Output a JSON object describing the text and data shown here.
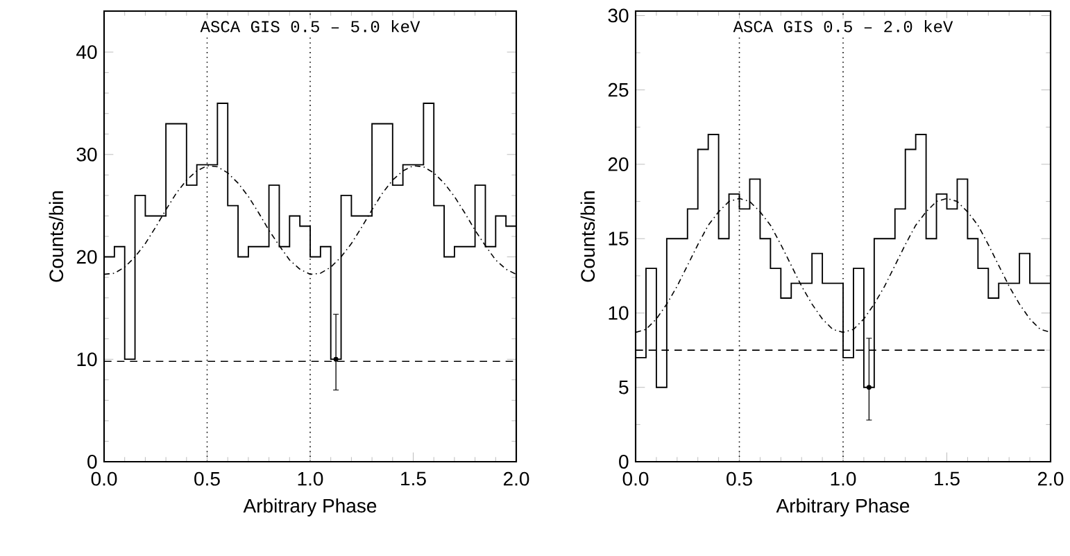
{
  "chart_data": [
    {
      "type": "step",
      "title": "ASCA GIS 0.5 – 5.0 keV",
      "xlabel": "Arbitrary Phase",
      "ylabel": "Counts/bin",
      "x": [
        0,
        0.05,
        0.1,
        0.15,
        0.2,
        0.25,
        0.3,
        0.35,
        0.4,
        0.45,
        0.5,
        0.55,
        0.6,
        0.65,
        0.7,
        0.75,
        0.8,
        0.85,
        0.9,
        0.95,
        1.0,
        1.05,
        1.1,
        1.15,
        1.2,
        1.25,
        1.3,
        1.35,
        1.4,
        1.45,
        1.5,
        1.55,
        1.6,
        1.65,
        1.7,
        1.75,
        1.8,
        1.85,
        1.9,
        1.95,
        2.0
      ],
      "values": [
        20,
        21,
        10,
        26,
        24,
        24,
        33,
        33,
        27,
        29,
        29,
        35,
        25,
        20,
        21,
        21,
        27,
        21,
        24,
        23,
        20,
        21,
        10,
        26,
        24,
        24,
        33,
        33,
        27,
        29,
        29,
        35,
        25,
        20,
        21,
        21,
        27,
        21,
        24,
        23,
        23
      ],
      "series": [
        {
          "type": "scatter",
          "marker": "circle",
          "x": [
            1.125
          ],
          "values": [
            10
          ],
          "errors": [
            [
              7.0,
              14.4
            ]
          ]
        },
        {
          "type": "line",
          "line_style": "dashed",
          "x": [
            0,
            0.05,
            0.1,
            0.15,
            0.2,
            0.25,
            0.3,
            0.35,
            0.4,
            0.45,
            0.5,
            0.55,
            0.6,
            0.65,
            0.7,
            0.75,
            0.8,
            0.85,
            0.9,
            0.95,
            1.0,
            1.05,
            1.1,
            1.15,
            1.2,
            1.25,
            1.3,
            1.35,
            1.4,
            1.45,
            1.5,
            1.55,
            1.6,
            1.65,
            1.7,
            1.75,
            1.8,
            1.85,
            1.9,
            1.95,
            2.0
          ],
          "values": [
            18.3,
            18.4,
            19.0,
            20.0,
            21.3,
            22.9,
            24.6,
            26.2,
            27.5,
            28.4,
            28.9,
            28.8,
            28.2,
            27.2,
            25.9,
            24.3,
            22.6,
            21.1,
            19.7,
            18.8,
            18.3,
            18.4,
            19.0,
            20.0,
            21.3,
            22.9,
            24.6,
            26.2,
            27.5,
            28.4,
            28.9,
            28.8,
            28.2,
            27.2,
            25.9,
            24.3,
            22.6,
            21.1,
            19.7,
            18.8,
            18.3
          ]
        }
      ],
      "ref_lines": [
        {
          "axis": "x",
          "value": 0.5,
          "line_style": "dotted"
        },
        {
          "axis": "x",
          "value": 1.0,
          "line_style": "dotted"
        },
        {
          "axis": "y",
          "value": 9.8,
          "line_style": "dashed"
        }
      ],
      "xlim": [
        0,
        2
      ],
      "ylim": [
        0,
        44
      ],
      "xticks": [
        {
          "value": 0,
          "label": "0.0"
        },
        {
          "value": 0.5,
          "label": "0.5"
        },
        {
          "value": 1,
          "label": "1.0"
        },
        {
          "value": 1.5,
          "label": "1.5"
        },
        {
          "value": 2,
          "label": "2.0"
        }
      ],
      "yticks": [
        0,
        10,
        20,
        30,
        40
      ]
    },
    {
      "type": "step",
      "title": "ASCA GIS 0.5 – 2.0 keV",
      "xlabel": "Arbitrary Phase",
      "ylabel": "Counts/bin",
      "x": [
        0,
        0.05,
        0.1,
        0.15,
        0.2,
        0.25,
        0.3,
        0.35,
        0.4,
        0.45,
        0.5,
        0.55,
        0.6,
        0.65,
        0.7,
        0.75,
        0.8,
        0.85,
        0.9,
        0.95,
        1.0,
        1.05,
        1.1,
        1.15,
        1.2,
        1.25,
        1.3,
        1.35,
        1.4,
        1.45,
        1.5,
        1.55,
        1.6,
        1.65,
        1.7,
        1.75,
        1.8,
        1.85,
        1.9,
        1.95,
        2.0
      ],
      "values": [
        7,
        13,
        5,
        15,
        15,
        17,
        21,
        22,
        15,
        18,
        17,
        19,
        15,
        13,
        11,
        12,
        12,
        14,
        12,
        12,
        7,
        13,
        5,
        15,
        15,
        17,
        21,
        22,
        15,
        18,
        17,
        19,
        15,
        13,
        11,
        12,
        12,
        14,
        12,
        12,
        12
      ],
      "series": [
        {
          "type": "scatter",
          "marker": "circle",
          "x": [
            1.125
          ],
          "values": [
            5
          ],
          "errors": [
            [
              2.8,
              8.3
            ]
          ]
        },
        {
          "type": "line",
          "line_style": "dashed",
          "x": [
            0,
            0.05,
            0.1,
            0.15,
            0.2,
            0.25,
            0.3,
            0.35,
            0.4,
            0.45,
            0.5,
            0.55,
            0.6,
            0.65,
            0.7,
            0.75,
            0.8,
            0.85,
            0.9,
            0.95,
            1.0,
            1.05,
            1.1,
            1.15,
            1.2,
            1.25,
            1.3,
            1.35,
            1.4,
            1.45,
            1.5,
            1.55,
            1.6,
            1.65,
            1.7,
            1.75,
            1.8,
            1.85,
            1.9,
            1.95,
            2.0
          ],
          "values": [
            8.7,
            8.9,
            9.6,
            10.6,
            11.8,
            13.2,
            14.6,
            15.9,
            16.8,
            17.5,
            17.7,
            17.5,
            16.8,
            15.9,
            14.6,
            13.2,
            11.8,
            10.6,
            9.6,
            8.9,
            8.7,
            8.9,
            9.6,
            10.6,
            11.8,
            13.2,
            14.6,
            15.9,
            16.8,
            17.5,
            17.7,
            17.5,
            16.8,
            15.9,
            14.6,
            13.2,
            11.8,
            10.6,
            9.6,
            8.9,
            8.7
          ]
        }
      ],
      "ref_lines": [
        {
          "axis": "x",
          "value": 0.5,
          "line_style": "dotted"
        },
        {
          "axis": "x",
          "value": 1.0,
          "line_style": "dotted"
        },
        {
          "axis": "y",
          "value": 7.5,
          "line_style": "dashed"
        }
      ],
      "xlim": [
        0,
        2
      ],
      "ylim": [
        0,
        30.3
      ],
      "xticks": [
        {
          "value": 0,
          "label": "0.0"
        },
        {
          "value": 0.5,
          "label": "0.5"
        },
        {
          "value": 1,
          "label": "1.0"
        },
        {
          "value": 1.5,
          "label": "1.5"
        },
        {
          "value": 2,
          "label": "2.0"
        }
      ],
      "yticks": [
        0,
        5,
        10,
        15,
        20,
        25,
        30
      ]
    }
  ]
}
